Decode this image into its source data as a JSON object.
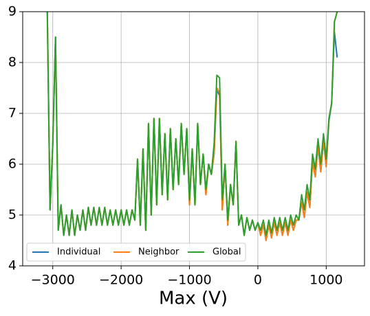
{
  "chart_data": {
    "type": "line",
    "xlabel": "Max (V)",
    "x": [
      -3080,
      -3040,
      -3000,
      -2960,
      -2920,
      -2880,
      -2840,
      -2800,
      -2760,
      -2720,
      -2680,
      -2640,
      -2600,
      -2560,
      -2520,
      -2480,
      -2440,
      -2400,
      -2360,
      -2320,
      -2280,
      -2240,
      -2200,
      -2160,
      -2120,
      -2080,
      -2040,
      -2000,
      -1960,
      -1920,
      -1880,
      -1840,
      -1800,
      -1760,
      -1720,
      -1680,
      -1640,
      -1600,
      -1560,
      -1520,
      -1480,
      -1440,
      -1400,
      -1360,
      -1320,
      -1280,
      -1240,
      -1200,
      -1160,
      -1120,
      -1080,
      -1040,
      -1000,
      -960,
      -920,
      -880,
      -840,
      -800,
      -760,
      -720,
      -680,
      -640,
      -600,
      -560,
      -520,
      -480,
      -440,
      -400,
      -360,
      -320,
      -280,
      -240,
      -200,
      -160,
      -120,
      -80,
      -40,
      0,
      40,
      80,
      120,
      160,
      200,
      240,
      280,
      320,
      360,
      400,
      440,
      480,
      520,
      560,
      600,
      640,
      680,
      720,
      760,
      800,
      840,
      880,
      920,
      960,
      1000,
      1040,
      1080,
      1120,
      1160
    ],
    "series": [
      {
        "name": "Individual",
        "color": "#1f77b4",
        "values": [
          9.0,
          5.1,
          6.4,
          8.5,
          4.7,
          5.2,
          4.6,
          5.0,
          4.6,
          5.1,
          4.6,
          5.0,
          4.7,
          5.1,
          4.7,
          5.15,
          4.8,
          5.15,
          4.8,
          5.15,
          4.8,
          5.15,
          4.8,
          5.1,
          4.8,
          5.1,
          4.8,
          5.1,
          4.8,
          5.1,
          4.8,
          5.1,
          4.9,
          6.1,
          4.8,
          6.3,
          4.7,
          6.8,
          5.0,
          6.9,
          5.2,
          6.9,
          5.4,
          6.6,
          5.3,
          6.7,
          5.5,
          6.5,
          5.6,
          6.8,
          5.8,
          6.7,
          5.2,
          6.3,
          5.2,
          6.8,
          5.6,
          6.2,
          5.4,
          6.0,
          5.8,
          6.2,
          7.45,
          7.35,
          5.1,
          6.0,
          4.8,
          5.6,
          5.2,
          6.45,
          4.8,
          5.0,
          4.6,
          4.95,
          4.7,
          4.9,
          4.7,
          4.85,
          4.6,
          4.8,
          4.5,
          4.8,
          4.55,
          4.85,
          4.6,
          4.85,
          4.6,
          4.85,
          4.6,
          4.9,
          4.7,
          4.9,
          4.9,
          5.25,
          4.95,
          5.45,
          5.15,
          6.05,
          5.75,
          6.35,
          5.85,
          6.45,
          5.95,
          6.85,
          7.2,
          8.6,
          8.1
        ]
      },
      {
        "name": "Neighbor",
        "color": "#ff7f0e",
        "values": [
          9.0,
          5.1,
          6.4,
          8.5,
          4.7,
          5.2,
          4.6,
          5.0,
          4.6,
          5.1,
          4.6,
          5.0,
          4.7,
          5.1,
          4.7,
          5.15,
          4.8,
          5.15,
          4.8,
          5.15,
          4.8,
          5.15,
          4.8,
          5.1,
          4.8,
          5.1,
          4.8,
          5.1,
          4.8,
          5.1,
          4.8,
          5.1,
          4.9,
          6.1,
          4.8,
          6.3,
          4.7,
          6.8,
          5.0,
          6.9,
          5.2,
          6.9,
          5.4,
          6.6,
          5.3,
          6.7,
          5.5,
          6.5,
          5.6,
          6.8,
          5.8,
          6.7,
          5.2,
          6.3,
          5.2,
          6.8,
          5.6,
          6.2,
          5.4,
          6.0,
          5.8,
          6.2,
          7.5,
          7.4,
          5.1,
          6.0,
          4.8,
          5.6,
          5.2,
          6.45,
          4.8,
          5.0,
          4.6,
          4.95,
          4.7,
          4.9,
          4.7,
          4.85,
          4.6,
          4.8,
          4.5,
          4.8,
          4.55,
          4.85,
          4.6,
          4.85,
          4.6,
          4.85,
          4.6,
          4.9,
          4.7,
          4.9,
          4.9,
          5.25,
          4.95,
          5.45,
          5.15,
          6.05,
          5.75,
          6.35,
          5.85,
          6.45,
          5.95,
          6.9,
          7.2,
          8.8,
          9.0
        ]
      },
      {
        "name": "Global",
        "color": "#2ca02c",
        "values": [
          9.0,
          5.1,
          6.4,
          8.5,
          4.7,
          5.2,
          4.6,
          5.0,
          4.6,
          5.1,
          4.6,
          5.0,
          4.7,
          5.1,
          4.7,
          5.15,
          4.8,
          5.15,
          4.8,
          5.15,
          4.8,
          5.15,
          4.8,
          5.1,
          4.8,
          5.1,
          4.8,
          5.1,
          4.8,
          5.1,
          4.8,
          5.1,
          4.9,
          6.1,
          4.8,
          6.3,
          4.7,
          6.8,
          5.0,
          6.9,
          5.2,
          6.9,
          5.4,
          6.6,
          5.3,
          6.7,
          5.5,
          6.5,
          5.6,
          6.8,
          5.8,
          6.7,
          5.3,
          6.3,
          5.2,
          6.8,
          5.6,
          6.2,
          5.5,
          6.0,
          5.8,
          6.4,
          7.75,
          7.7,
          5.3,
          6.0,
          4.9,
          5.6,
          5.2,
          6.45,
          4.8,
          5.0,
          4.6,
          4.95,
          4.7,
          4.9,
          4.7,
          4.85,
          4.7,
          4.9,
          4.6,
          4.9,
          4.65,
          4.95,
          4.7,
          4.95,
          4.7,
          4.95,
          4.7,
          5.0,
          4.8,
          5.0,
          4.9,
          5.4,
          5.1,
          5.6,
          5.3,
          6.2,
          5.9,
          6.5,
          6.0,
          6.6,
          6.1,
          6.9,
          7.2,
          8.8,
          9.0
        ]
      }
    ],
    "xlim": [
      -3440,
      1560
    ],
    "ylim": [
      4,
      9
    ],
    "xticks": [
      {
        "value": -3000,
        "label": "−3000"
      },
      {
        "value": -2000,
        "label": "−2000"
      },
      {
        "value": -1000,
        "label": "−1000"
      },
      0,
      1000
    ],
    "yticks": [
      4,
      5,
      6,
      7,
      8,
      9
    ],
    "grid": true,
    "legend": "lower left"
  }
}
